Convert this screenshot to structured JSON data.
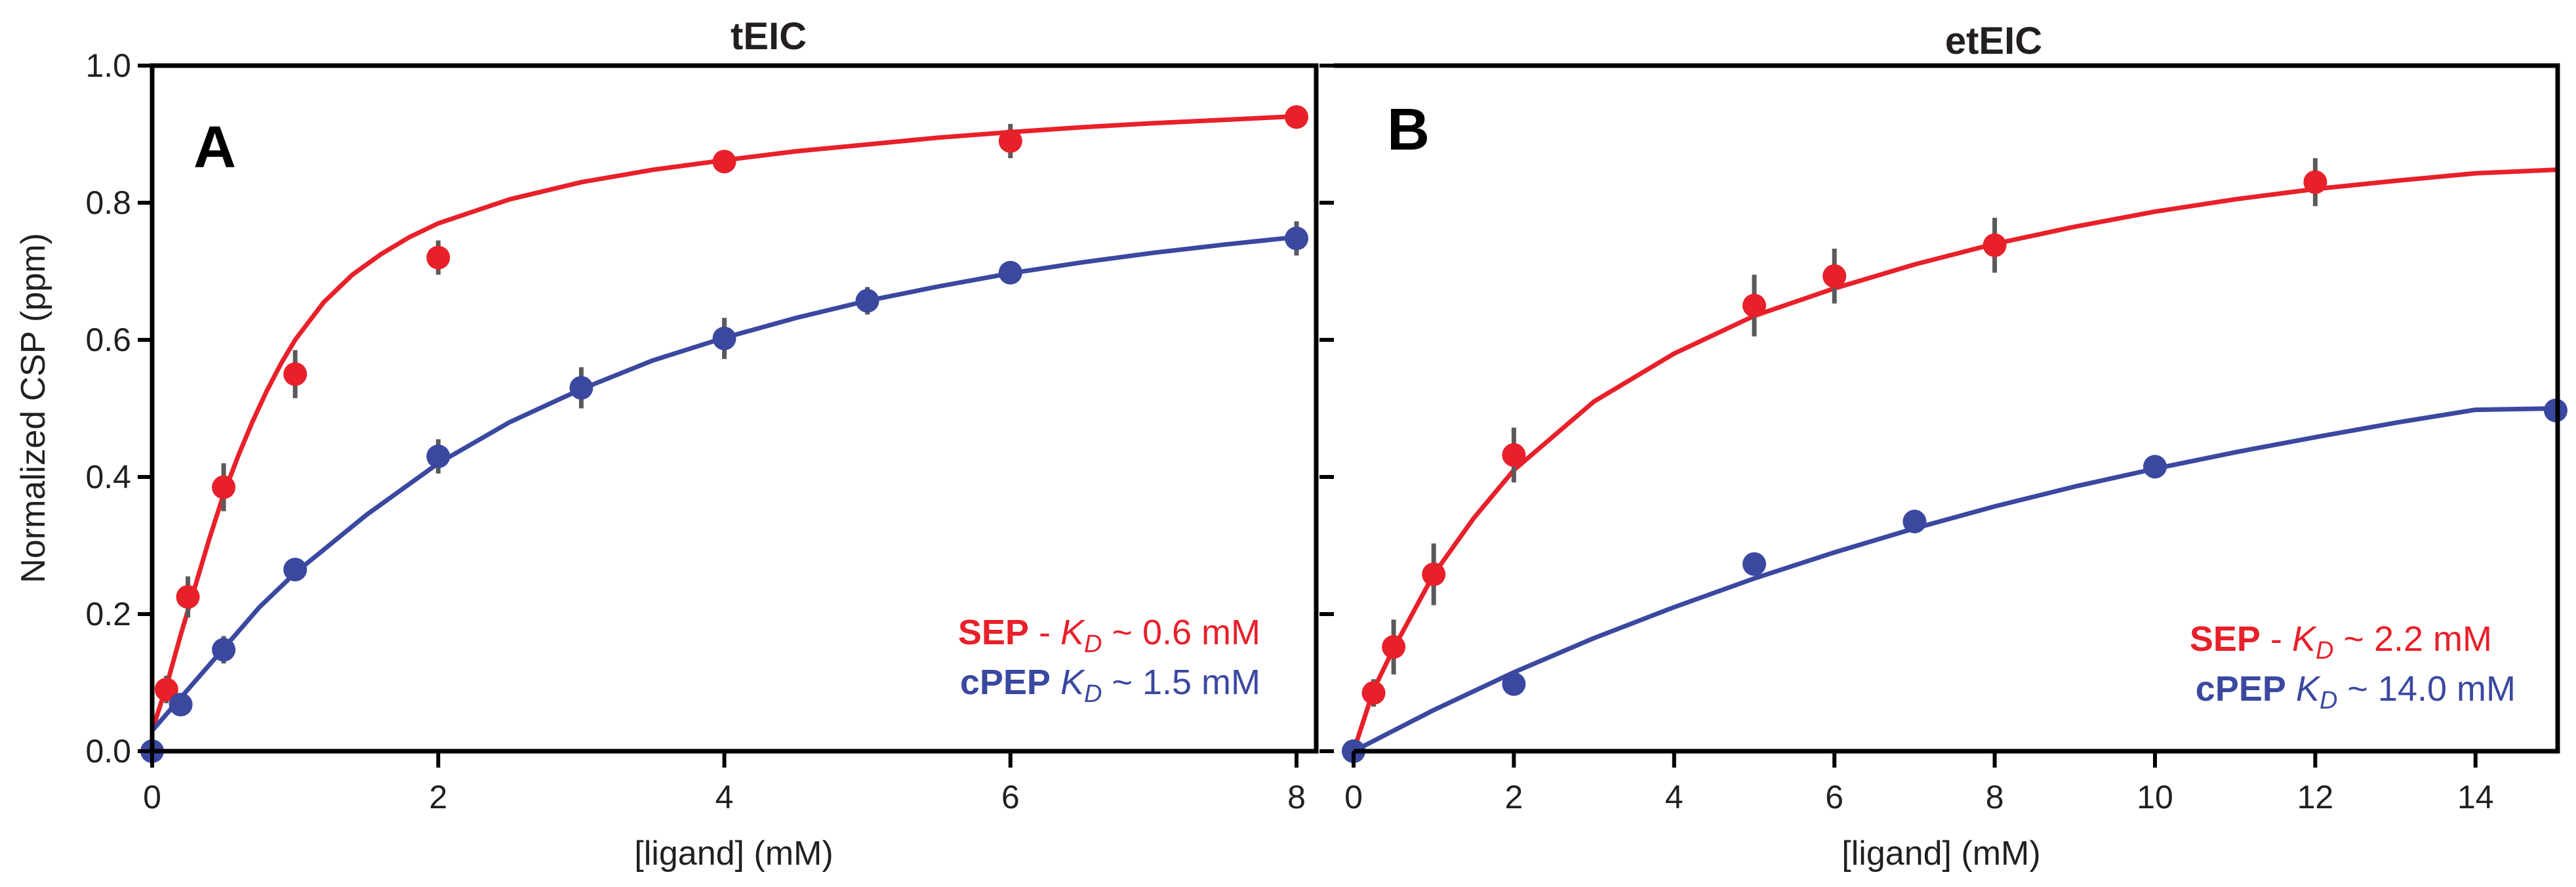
{
  "chart_data": [
    {
      "type": "scatter",
      "panel_letter": "A",
      "title": "tEIC",
      "xlabel": "[ligand] (mM)",
      "ylabel": "Normalized CSP (ppm)",
      "xlim": [
        0,
        8
      ],
      "ylim": [
        0,
        1.0
      ],
      "xticks": [
        0,
        2,
        4,
        6,
        8
      ],
      "xtick_labels": [
        "0",
        "2",
        "4",
        "6",
        "8"
      ],
      "yticks": [
        0,
        0.2,
        0.4,
        0.6,
        0.8,
        1.0
      ],
      "ytick_labels": [
        "0.0",
        "0.2",
        "0.4",
        "0.6",
        "0.8",
        "1.0"
      ],
      "legend_position": "bottom-right",
      "series": [
        {
          "name": "SEP",
          "color": "#e8202a",
          "legend": {
            "name": "SEP",
            "sep": " - ",
            "kd_symbol": "K",
            "kd_sub": "D",
            "kd_value": " ~ 0.6 mM"
          },
          "x": [
            0.1,
            0.25,
            0.5,
            1,
            2,
            4,
            6,
            8
          ],
          "y": [
            0.09,
            0.225,
            0.385,
            0.55,
            0.72,
            0.86,
            0.89,
            0.925
          ],
          "err": [
            0.02,
            0.03,
            0.035,
            0.035,
            0.025,
            0.01,
            0.025,
            0.01
          ],
          "fit_x": [
            0,
            0.1,
            0.2,
            0.3,
            0.4,
            0.5,
            0.6,
            0.7,
            0.8,
            0.9,
            1.0,
            1.2,
            1.4,
            1.6,
            1.8,
            2.0,
            2.5,
            3.0,
            3.5,
            4.0,
            4.5,
            5.0,
            5.5,
            6.0,
            6.5,
            7.0,
            7.5,
            8.0
          ],
          "fit_y": [
            0.03,
            0.095,
            0.17,
            0.24,
            0.31,
            0.375,
            0.43,
            0.48,
            0.525,
            0.565,
            0.6,
            0.655,
            0.695,
            0.725,
            0.75,
            0.77,
            0.805,
            0.83,
            0.848,
            0.862,
            0.875,
            0.885,
            0.895,
            0.903,
            0.91,
            0.916,
            0.921,
            0.926
          ]
        },
        {
          "name": "cPEP",
          "color": "#3b48a0",
          "legend": {
            "name": "cPEP",
            "sep": " ",
            "kd_symbol": "K",
            "kd_sub": "D",
            "kd_value": " ~ 1.5 mM"
          },
          "x": [
            0,
            0.2,
            0.5,
            1,
            2,
            3,
            4,
            5,
            6,
            8
          ],
          "y": [
            0.0,
            0.068,
            0.148,
            0.265,
            0.43,
            0.53,
            0.602,
            0.657,
            0.698,
            0.748
          ],
          "err": [
            0.0,
            0.015,
            0.02,
            0.015,
            0.025,
            0.03,
            0.03,
            0.02,
            0.015,
            0.025
          ],
          "fit_x": [
            0,
            0.25,
            0.5,
            0.75,
            1.0,
            1.5,
            2.0,
            2.5,
            3.0,
            3.5,
            4.0,
            4.5,
            5.0,
            5.5,
            6.0,
            6.5,
            7.0,
            7.5,
            8.0
          ],
          "fit_y": [
            0.03,
            0.09,
            0.15,
            0.21,
            0.26,
            0.345,
            0.42,
            0.48,
            0.528,
            0.57,
            0.603,
            0.632,
            0.657,
            0.678,
            0.697,
            0.713,
            0.727,
            0.739,
            0.75
          ]
        }
      ]
    },
    {
      "type": "scatter",
      "panel_letter": "B",
      "title": "etEIC",
      "xlabel": "[ligand] (mM)",
      "ylabel": "",
      "xlim": [
        0,
        15
      ],
      "ylim": [
        0,
        1.0
      ],
      "xticks": [
        0,
        2,
        4,
        6,
        8,
        10,
        12,
        14
      ],
      "xtick_labels": [
        "0",
        "2",
        "4",
        "6",
        "8",
        "10",
        "12",
        "14"
      ],
      "yticks": [
        0,
        0.2,
        0.4,
        0.6,
        0.8,
        1.0
      ],
      "legend_position": "bottom-right",
      "series": [
        {
          "name": "SEP",
          "color": "#e8202a",
          "legend": {
            "name": "SEP",
            "sep": " - ",
            "kd_symbol": "K",
            "kd_sub": "D",
            "kd_value": " ~ 2.2 mM"
          },
          "x": [
            0,
            0.25,
            0.5,
            1,
            2,
            5,
            6,
            8,
            12
          ],
          "y": [
            0.0,
            0.085,
            0.152,
            0.258,
            0.432,
            0.65,
            0.693,
            0.738,
            0.83
          ],
          "err": [
            0.0,
            0.02,
            0.04,
            0.045,
            0.04,
            0.045,
            0.04,
            0.04,
            0.035
          ],
          "fit_x": [
            0,
            0.25,
            0.5,
            1,
            1.5,
            2,
            3,
            4,
            5,
            6,
            7,
            8,
            9,
            10,
            11,
            12,
            13,
            14,
            15
          ],
          "fit_y": [
            0.0,
            0.09,
            0.15,
            0.258,
            0.34,
            0.41,
            0.51,
            0.58,
            0.635,
            0.675,
            0.71,
            0.74,
            0.765,
            0.787,
            0.805,
            0.82,
            0.832,
            0.843,
            0.848
          ]
        },
        {
          "name": "cPEP",
          "color": "#3b48a0",
          "legend": {
            "name": "cPEP",
            "sep": " ",
            "kd_symbol": "K",
            "kd_sub": "D",
            "kd_value": " ~ 14.0 mM"
          },
          "x": [
            0,
            2,
            5,
            7,
            10,
            15
          ],
          "y": [
            0.0,
            0.098,
            0.273,
            0.335,
            0.415,
            0.497
          ],
          "err": [
            0,
            0,
            0,
            0,
            0,
            0
          ],
          "fit_x": [
            0,
            1,
            2,
            3,
            4,
            5,
            6,
            7,
            8,
            9,
            10,
            11,
            12,
            13,
            14,
            15
          ],
          "fit_y": [
            0.0,
            0.06,
            0.115,
            0.165,
            0.21,
            0.252,
            0.29,
            0.325,
            0.357,
            0.386,
            0.412,
            0.436,
            0.458,
            0.479,
            0.498,
            0.5
          ]
        }
      ]
    }
  ]
}
